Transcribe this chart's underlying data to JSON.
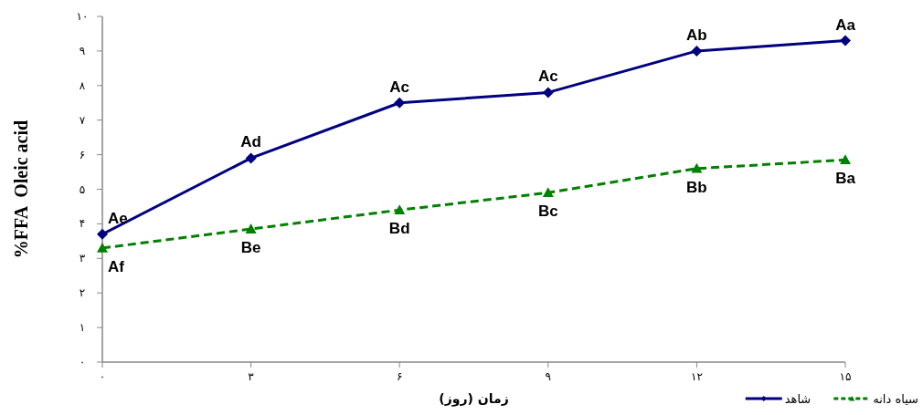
{
  "chart_data": {
    "type": "line",
    "xlabel": "زمان (روز)",
    "ylabel": "%FFA  Oleic acid",
    "x": [
      0,
      3,
      6,
      9,
      12,
      15
    ],
    "series": [
      {
        "name": "شاهد",
        "color": "#000080",
        "marker": "diamond",
        "line_style": "solid",
        "values": [
          3.7,
          5.9,
          7.5,
          7.8,
          9.0,
          9.3
        ]
      },
      {
        "name": "سیاه دانه",
        "color": "#008000",
        "marker": "triangle",
        "line_style": "dashed",
        "values": [
          3.3,
          3.85,
          4.4,
          4.9,
          5.6,
          5.85
        ]
      }
    ],
    "xlim": [
      0,
      15
    ],
    "ylim": [
      0,
      10
    ],
    "xticks": [
      {
        "value": 0,
        "label": "۰"
      },
      {
        "value": 3,
        "label": "۳"
      },
      {
        "value": 6,
        "label": "۶"
      },
      {
        "value": 9,
        "label": "۹"
      },
      {
        "value": 12,
        "label": "۱۲"
      },
      {
        "value": 15,
        "label": "۱۵"
      }
    ],
    "yticks": [
      {
        "value": 0,
        "label": "۰"
      },
      {
        "value": 1,
        "label": "۱"
      },
      {
        "value": 2,
        "label": "۲"
      },
      {
        "value": 3,
        "label": "۳"
      },
      {
        "value": 4,
        "label": "۴"
      },
      {
        "value": 5,
        "label": "۵"
      },
      {
        "value": 6,
        "label": "۶"
      },
      {
        "value": 7,
        "label": "۷"
      },
      {
        "value": 8,
        "label": "۸"
      },
      {
        "value": 9,
        "label": "۹"
      },
      {
        "value": 10,
        "label": "۱۰"
      }
    ],
    "grid": false,
    "legend": "bottom right",
    "annotations": [
      {
        "text": "Ae",
        "x": 0,
        "y": 3.7
      },
      {
        "text": "Ad",
        "x": 3,
        "y": 5.9
      },
      {
        "text": "Ac",
        "x": 6,
        "y": 7.5
      },
      {
        "text": "Ac",
        "x": 9,
        "y": 7.8
      },
      {
        "text": "Ab",
        "x": 12,
        "y": 9.0
      },
      {
        "text": "Aa",
        "x": 15,
        "y": 9.3
      },
      {
        "text": "Af",
        "x": 0,
        "y": 3.3
      },
      {
        "text": "Be",
        "x": 3,
        "y": 3.85
      },
      {
        "text": "Bd",
        "x": 6,
        "y": 4.4
      },
      {
        "text": "Bc",
        "x": 9,
        "y": 4.9
      },
      {
        "text": "Bb",
        "x": 12,
        "y": 5.6
      },
      {
        "text": "Ba",
        "x": 15,
        "y": 5.85
      }
    ]
  }
}
